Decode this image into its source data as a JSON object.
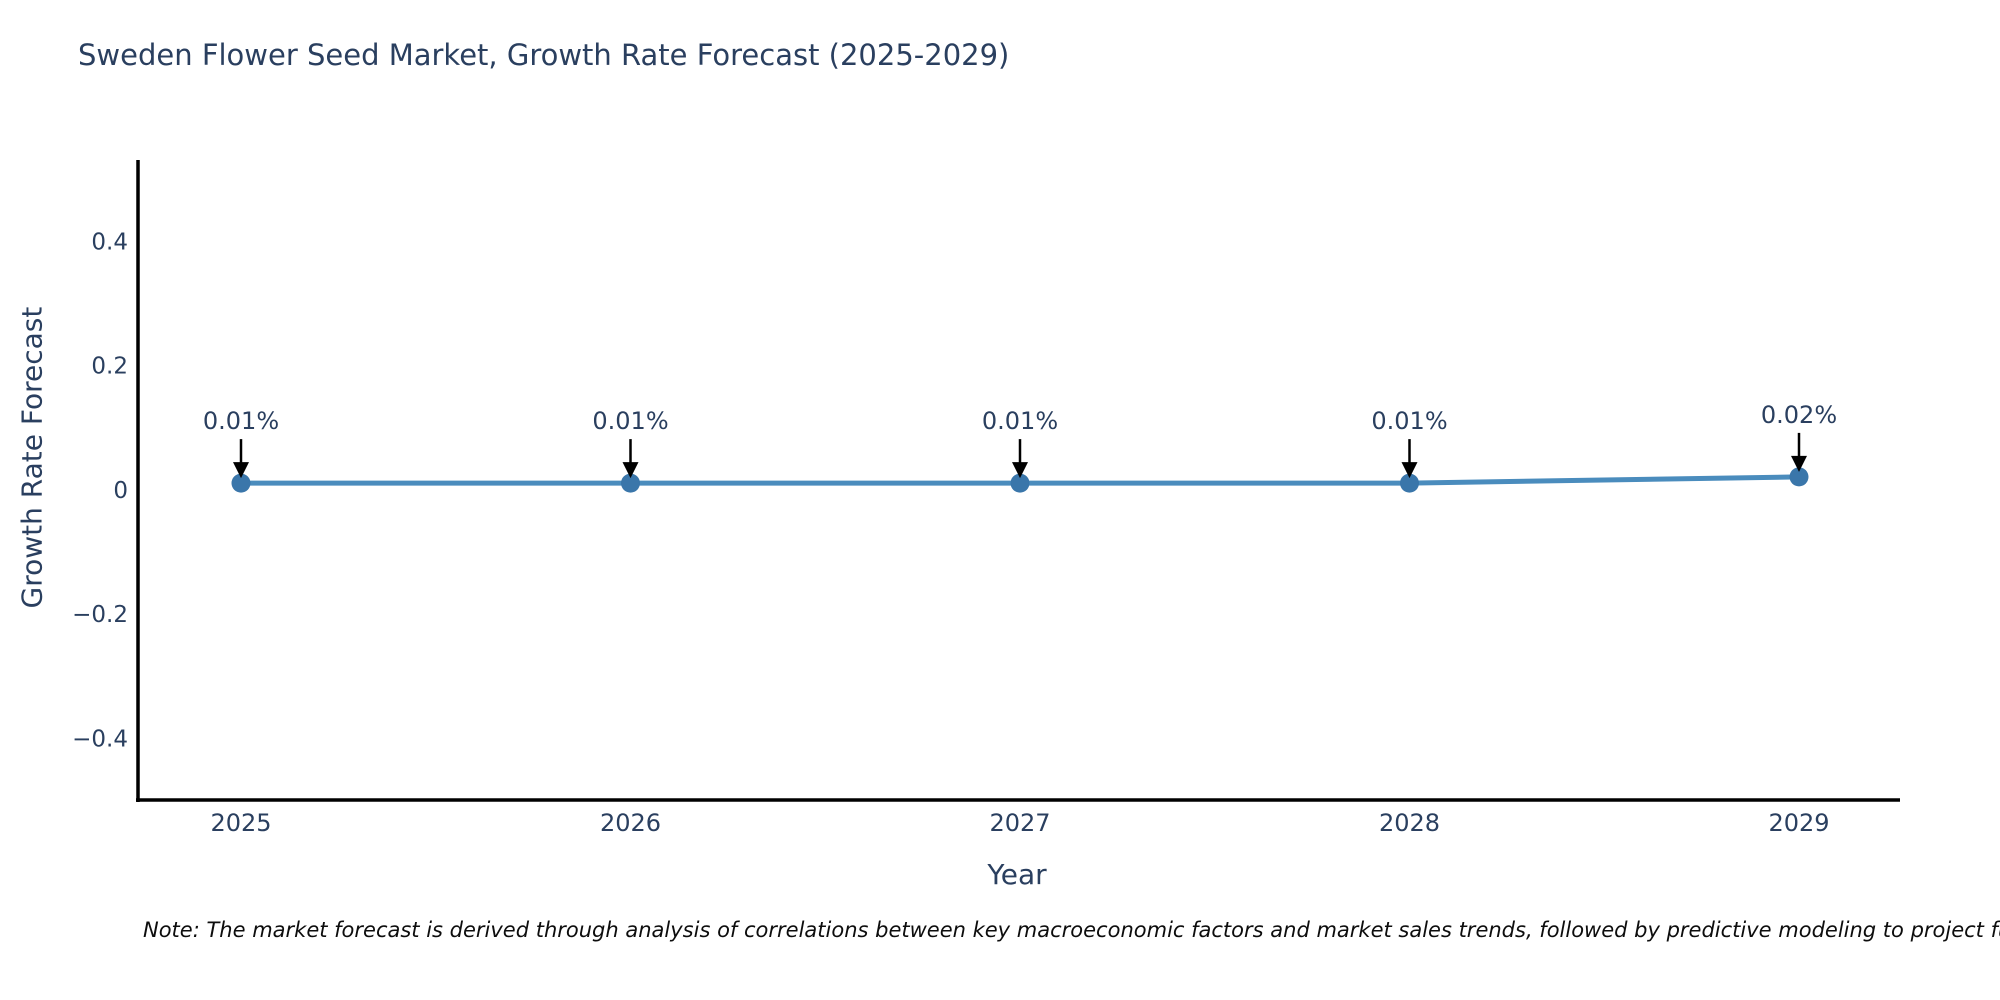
{
  "title": "Sweden Flower Seed Market, Growth Rate Forecast (2025-2029)",
  "note": "Note: The market forecast is derived through analysis of correlations between key macroeconomic factors and market sales trends, followed by predictive modeling to project future sales.",
  "chart_data": {
    "type": "line",
    "title": "Sweden Flower Seed Market, Growth Rate Forecast (2025-2029)",
    "xlabel": "Year",
    "ylabel": "Growth Rate Forecast",
    "categories": [
      "2025",
      "2026",
      "2027",
      "2028",
      "2029"
    ],
    "values": [
      0.01,
      0.01,
      0.01,
      0.01,
      0.02
    ],
    "point_labels": [
      "0.01%",
      "0.01%",
      "0.01%",
      "0.01%",
      "0.02%"
    ],
    "unit": "%",
    "yticks": [
      0.4,
      0.2,
      0,
      -0.2,
      -0.4
    ],
    "ytick_labels": [
      "0.4",
      "0.2",
      "0",
      "−0.2",
      "−0.4"
    ],
    "ylim": [
      -0.5,
      0.53
    ],
    "grid": false,
    "legend": "none",
    "colors": {
      "line": "#4a8cbd",
      "marker": "#3a76aa",
      "axis": "#000000",
      "text": "#2a3f5f",
      "annotation_arrow": "#000000",
      "note_text": "#0d0d0d",
      "background": "#ffffff"
    }
  }
}
